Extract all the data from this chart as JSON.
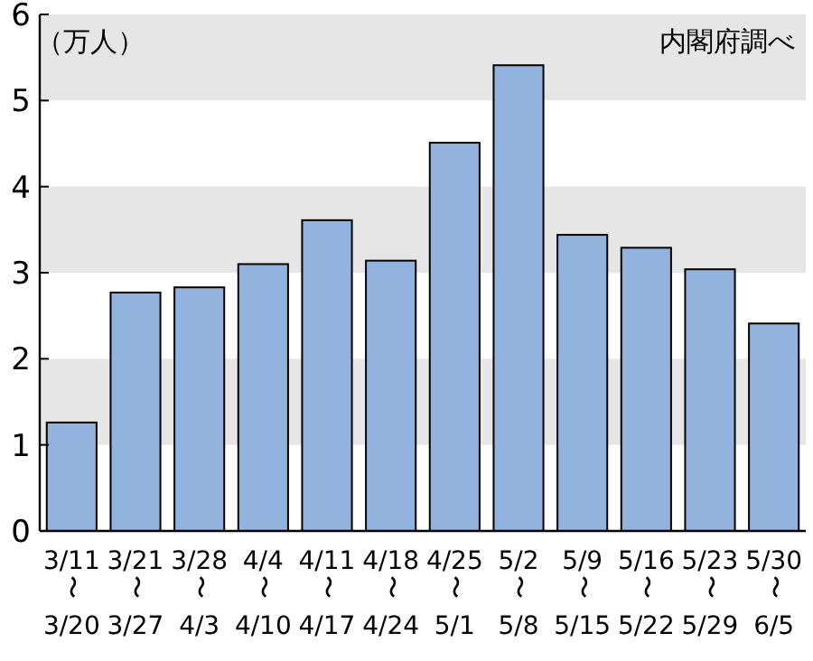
{
  "chart_data": {
    "type": "bar",
    "ylabel": "（万人）",
    "annotations": [
      "内閣府調べ"
    ],
    "categories": [
      "3/11〜3/20",
      "3/21〜3/27",
      "3/28〜4/3",
      "4/4〜4/10",
      "4/11〜4/17",
      "4/18〜4/24",
      "4/25〜5/1",
      "5/2〜5/8",
      "5/9〜5/15",
      "5/16〜5/22",
      "5/23〜5/29",
      "5/30〜6/5"
    ],
    "values": [
      1.26,
      2.77,
      2.83,
      3.1,
      3.61,
      3.14,
      4.51,
      5.41,
      3.44,
      3.29,
      3.04,
      2.41
    ],
    "color": "#92b3de",
    "ylim": [
      0,
      6
    ],
    "yticks": [
      0,
      1,
      2,
      3,
      4,
      5,
      6
    ],
    "grid": false,
    "bands": [
      {
        "axis": "y",
        "from": 1,
        "to": 2,
        "color": "#e6e6e6"
      },
      {
        "axis": "y",
        "from": 3,
        "to": 4,
        "color": "#e6e6e6"
      },
      {
        "axis": "y",
        "from": 5,
        "to": 6,
        "color": "#e6e6e6"
      }
    ]
  }
}
